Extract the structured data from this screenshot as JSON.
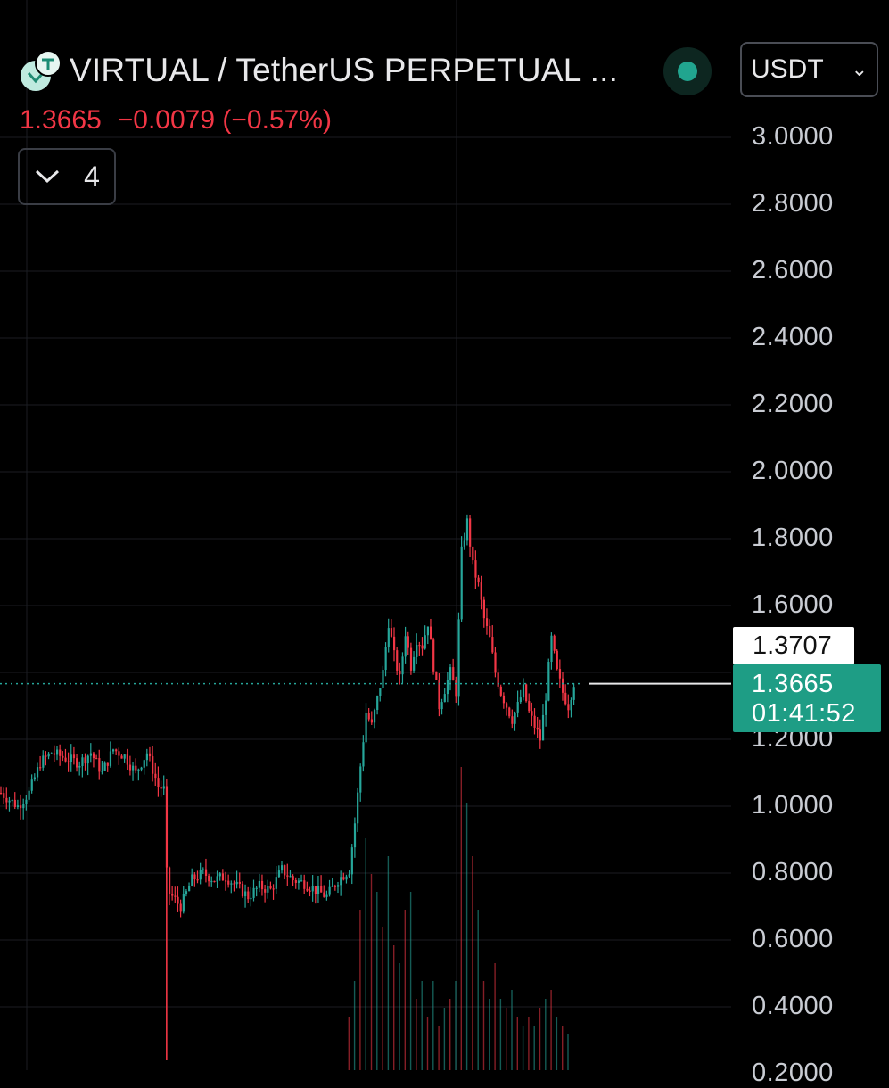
{
  "header": {
    "title": "VIRTUAL / TetherUS PERPETUAL ...",
    "currency": "USDT",
    "price": "1.3665",
    "change": "−0.0079 (−0.57%)",
    "indicator_count": "4"
  },
  "axis": {
    "y_ticks": [
      "3.0000",
      "2.8000",
      "2.6000",
      "2.4000",
      "2.2000",
      "2.0000",
      "1.8000",
      "1.6000",
      "1.2000",
      "1.0000",
      "0.8000",
      "0.6000",
      "0.4000",
      "0.2000"
    ]
  },
  "price_labels": {
    "high_marker": "1.3707",
    "current": "1.3665",
    "countdown": "01:41:52"
  },
  "colors": {
    "up": "#26a69a",
    "down": "#f23645",
    "accent": "#1e9d85"
  },
  "chart_data": {
    "type": "candlestick",
    "ylim": [
      0.2,
      3.0
    ],
    "y_ticks": [
      0.4,
      0.6,
      0.8,
      1.0,
      1.2,
      1.4,
      1.6,
      1.8,
      2.0,
      2.2,
      2.4,
      2.6,
      2.8,
      3.0
    ],
    "last_price": 1.3665,
    "anchors": [
      [
        0,
        1.04
      ],
      [
        6,
        1.0
      ],
      [
        10,
        1.04
      ],
      [
        14,
        1.13
      ],
      [
        18,
        1.16
      ],
      [
        24,
        1.14
      ],
      [
        28,
        1.13
      ],
      [
        32,
        1.16
      ],
      [
        36,
        1.1
      ],
      [
        40,
        1.17
      ],
      [
        44,
        1.15
      ],
      [
        48,
        1.1
      ],
      [
        52,
        1.16
      ],
      [
        56,
        1.06
      ],
      [
        58,
        1.05
      ],
      [
        59,
        0.8
      ],
      [
        60,
        0.74
      ],
      [
        64,
        0.7
      ],
      [
        68,
        0.78
      ],
      [
        72,
        0.8
      ],
      [
        76,
        0.78
      ],
      [
        80,
        0.79
      ],
      [
        84,
        0.76
      ],
      [
        88,
        0.73
      ],
      [
        92,
        0.76
      ],
      [
        96,
        0.75
      ],
      [
        100,
        0.81
      ],
      [
        104,
        0.78
      ],
      [
        108,
        0.77
      ],
      [
        112,
        0.75
      ],
      [
        116,
        0.73
      ],
      [
        120,
        0.78
      ],
      [
        124,
        0.81
      ],
      [
        126,
        0.95
      ],
      [
        128,
        1.12
      ],
      [
        130,
        1.28
      ],
      [
        132,
        1.24
      ],
      [
        134,
        1.32
      ],
      [
        136,
        1.4
      ],
      [
        138,
        1.55
      ],
      [
        140,
        1.45
      ],
      [
        142,
        1.38
      ],
      [
        144,
        1.52
      ],
      [
        146,
        1.42
      ],
      [
        148,
        1.5
      ],
      [
        150,
        1.48
      ],
      [
        152,
        1.55
      ],
      [
        154,
        1.42
      ],
      [
        156,
        1.3
      ],
      [
        158,
        1.35
      ],
      [
        160,
        1.4
      ],
      [
        162,
        1.34
      ],
      [
        164,
        1.76
      ],
      [
        166,
        1.85
      ],
      [
        168,
        1.72
      ],
      [
        170,
        1.66
      ],
      [
        172,
        1.56
      ],
      [
        174,
        1.5
      ],
      [
        176,
        1.4
      ],
      [
        178,
        1.34
      ],
      [
        180,
        1.3
      ],
      [
        182,
        1.26
      ],
      [
        184,
        1.3
      ],
      [
        186,
        1.35
      ],
      [
        188,
        1.28
      ],
      [
        190,
        1.24
      ],
      [
        192,
        1.2
      ],
      [
        194,
        1.33
      ],
      [
        196,
        1.5
      ],
      [
        198,
        1.4
      ],
      [
        200,
        1.34
      ],
      [
        202,
        1.3
      ],
      [
        204,
        1.37
      ]
    ],
    "volume": [
      [
        124,
        0.06
      ],
      [
        126,
        0.1
      ],
      [
        128,
        0.18
      ],
      [
        130,
        0.26
      ],
      [
        132,
        0.22
      ],
      [
        134,
        0.2
      ],
      [
        136,
        0.16
      ],
      [
        138,
        0.24
      ],
      [
        140,
        0.14
      ],
      [
        142,
        0.12
      ],
      [
        144,
        0.18
      ],
      [
        146,
        0.2
      ],
      [
        148,
        0.08
      ],
      [
        150,
        0.1
      ],
      [
        152,
        0.06
      ],
      [
        154,
        0.1
      ],
      [
        156,
        0.05
      ],
      [
        158,
        0.07
      ],
      [
        160,
        0.08
      ],
      [
        162,
        0.1
      ],
      [
        164,
        0.34
      ],
      [
        166,
        0.3
      ],
      [
        168,
        0.24
      ],
      [
        170,
        0.18
      ],
      [
        172,
        0.1
      ],
      [
        174,
        0.08
      ],
      [
        176,
        0.12
      ],
      [
        178,
        0.08
      ],
      [
        180,
        0.07
      ],
      [
        182,
        0.09
      ],
      [
        184,
        0.06
      ],
      [
        186,
        0.05
      ],
      [
        188,
        0.06
      ],
      [
        190,
        0.05
      ],
      [
        192,
        0.07
      ],
      [
        194,
        0.08
      ],
      [
        196,
        0.09
      ],
      [
        198,
        0.06
      ],
      [
        200,
        0.05
      ],
      [
        202,
        0.04
      ]
    ]
  }
}
